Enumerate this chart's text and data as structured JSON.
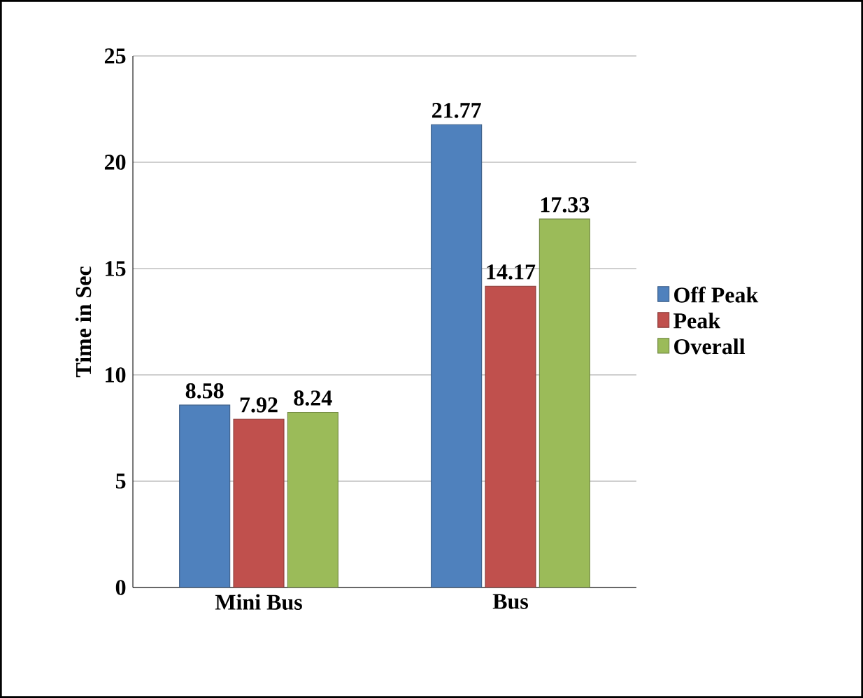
{
  "chart_data": {
    "type": "bar",
    "ylabel": "Time in Sec",
    "categories": [
      "Mini Bus",
      "Bus"
    ],
    "series": [
      {
        "name": "Off Peak",
        "color": "#4f81bd",
        "values": [
          8.58,
          21.77
        ]
      },
      {
        "name": "Peak",
        "color": "#c0504d",
        "values": [
          7.92,
          14.17
        ]
      },
      {
        "name": "Overall",
        "color": "#9bbb59",
        "values": [
          8.24,
          17.33
        ]
      }
    ],
    "ylim": [
      0,
      25
    ],
    "yticks": [
      0,
      5,
      10,
      15,
      20,
      25
    ],
    "grid": "y",
    "legend": "right",
    "data_labels": true
  }
}
